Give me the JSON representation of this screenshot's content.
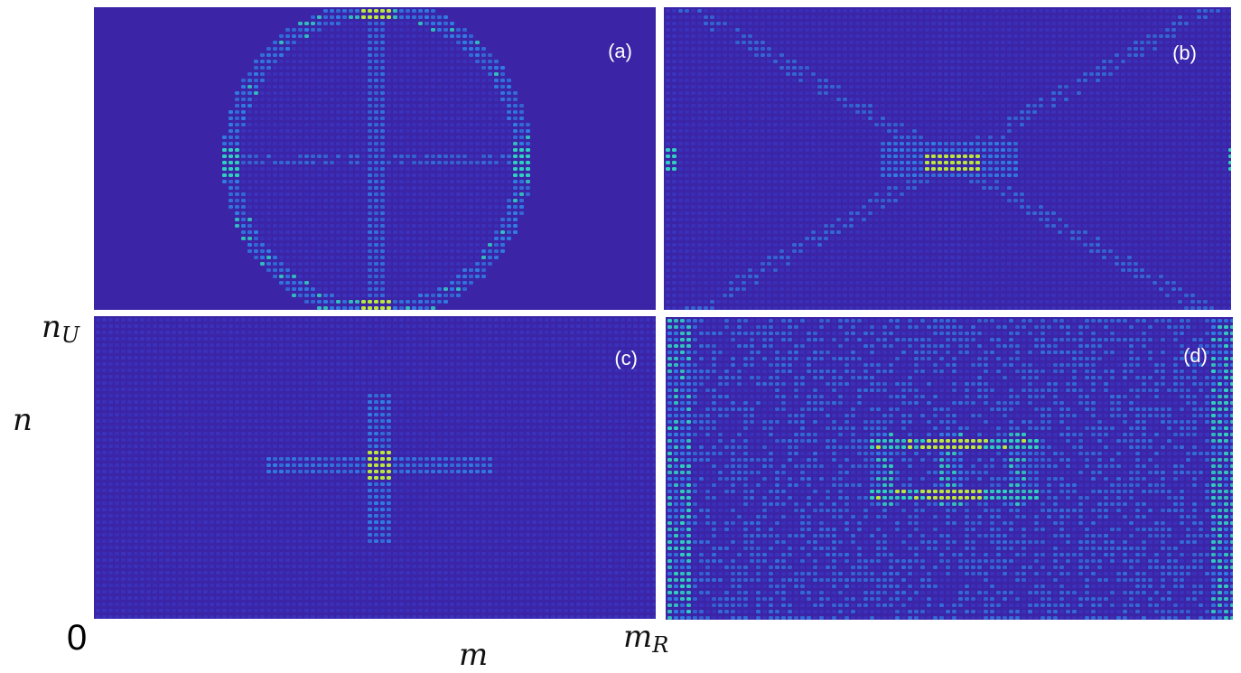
{
  "panels": [
    {
      "id": "a",
      "label": "(a)"
    },
    {
      "id": "b",
      "label": "(b)"
    },
    {
      "id": "c",
      "label": "(c)"
    },
    {
      "id": "d",
      "label": "(d)"
    }
  ],
  "axes": {
    "y_top": "n",
    "y_top_sub": "U",
    "y": "n",
    "x": "m",
    "x_right": "m",
    "x_right_sub": "R",
    "origin": "0"
  },
  "colors": {
    "background": "#3b24a6",
    "low": "#3a3fd0",
    "mid": "#2e8ef0",
    "high": "#30d0c0",
    "peak": "#b8e840"
  }
}
